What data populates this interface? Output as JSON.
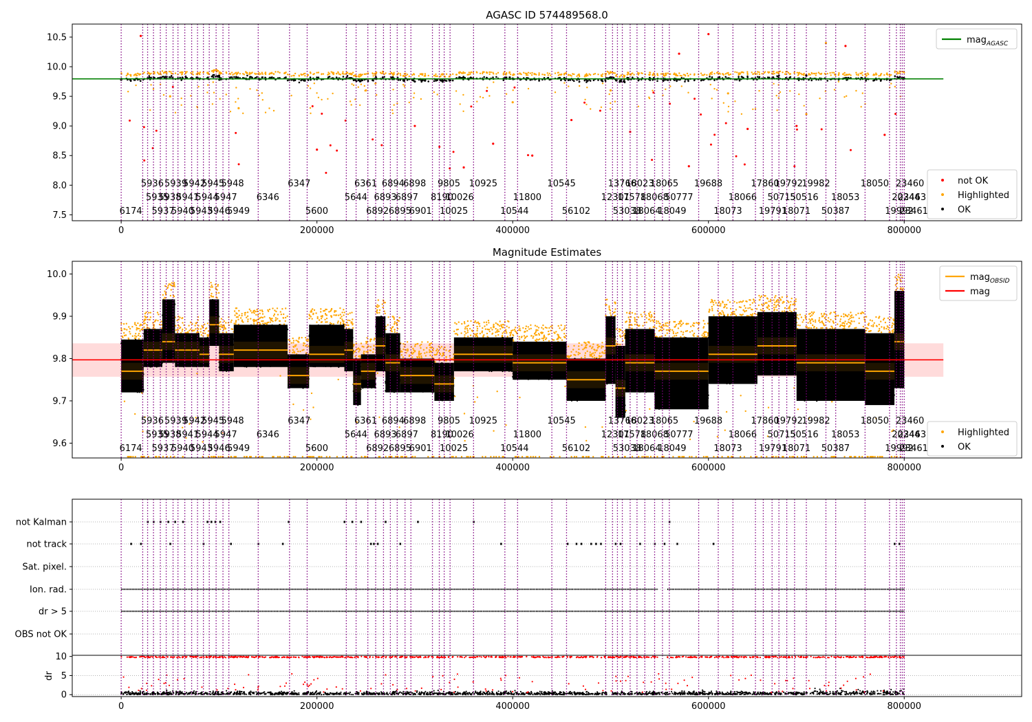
{
  "chart_data": [
    {
      "type": "scatter",
      "title": "AGASC ID 574489568.0",
      "xlabel": "",
      "ylabel": "",
      "xlim": [
        -50000,
        920000
      ],
      "ylim": [
        7.4,
        10.72
      ],
      "xticks": [
        0,
        200000,
        400000,
        600000,
        800000
      ],
      "xtick_labels": [
        "0",
        "200000",
        "400000",
        "600000",
        "800000"
      ],
      "yticks": [
        7.5,
        8.0,
        8.5,
        9.0,
        9.5,
        10.0,
        10.5
      ],
      "ytick_labels": [
        "7.5",
        "8.0",
        "8.5",
        "9.0",
        "9.5",
        "10.0",
        "10.5"
      ],
      "series": [
        {
          "name": "not OK",
          "color": "#ff0000",
          "points": [
            [
              20000,
              10.52
            ],
            [
              200000,
              8.6
            ],
            [
              300000,
              9.0
            ],
            [
              350000,
              8.3
            ],
            [
              380000,
              8.7
            ],
            [
              420000,
              8.5
            ],
            [
              460000,
              9.1
            ],
            [
              520000,
              8.9
            ],
            [
              570000,
              10.22
            ],
            [
              580000,
              8.32
            ],
            [
              600000,
              10.55
            ],
            [
              640000,
              8.95
            ],
            [
              690000,
              9.0
            ],
            [
              740000,
              10.35
            ],
            [
              780000,
              8.85
            ]
          ]
        },
        {
          "name": "Highlighted",
          "color": "#ffa500",
          "points": [
            [
              50000,
              9.5
            ],
            [
              120000,
              9.3
            ],
            [
              250000,
              9.6
            ],
            [
              400000,
              9.4
            ],
            [
              500000,
              9.6
            ],
            [
              620000,
              9.55
            ],
            [
              700000,
              9.2
            ],
            [
              720000,
              10.4
            ]
          ]
        },
        {
          "name": "OK",
          "color": "#000000",
          "points": [
            [
              0,
              9.78
            ],
            [
              100000,
              9.85
            ],
            [
              200000,
              9.79
            ],
            [
              300000,
              9.75
            ],
            [
              400000,
              9.8
            ],
            [
              500000,
              9.82
            ],
            [
              600000,
              9.79
            ],
            [
              700000,
              9.85
            ],
            [
              800000,
              9.8
            ]
          ]
        }
      ],
      "line": {
        "name": "mag",
        "sub": "AGASC",
        "color": "#008000",
        "value": 9.795
      },
      "legends": [
        {
          "entries": [
            {
              "marker": "line",
              "color": "#008000",
              "label": "mag",
              "sub": "AGASC"
            }
          ]
        },
        {
          "entries": [
            {
              "marker": "dot",
              "color": "#ff0000",
              "label": "not OK"
            },
            {
              "marker": "dot",
              "color": "#ffa500",
              "label": "Highlighted"
            },
            {
              "marker": "dot",
              "color": "#000000",
              "label": "OK"
            }
          ]
        }
      ]
    },
    {
      "type": "scatter",
      "title": "Magnitude Estimates",
      "xlabel": "",
      "ylabel": "",
      "xlim": [
        -50000,
        920000
      ],
      "ylim": [
        9.565,
        10.03
      ],
      "xticks": [
        0,
        200000,
        400000,
        600000,
        800000
      ],
      "xtick_labels": [
        "0",
        "200000",
        "400000",
        "600000",
        "800000"
      ],
      "yticks": [
        9.6,
        9.7,
        9.8,
        9.9,
        10.0
      ],
      "ytick_labels": [
        "9.6",
        "9.7",
        "9.8",
        "9.9",
        "10.0"
      ],
      "band": {
        "color": "#ffcccc",
        "low": 9.757,
        "high": 9.836
      },
      "line": {
        "name": "mag",
        "color": "#ff0000",
        "value": 9.797
      },
      "segments": [
        {
          "x": [
            0,
            23000
          ],
          "lo": 9.72,
          "hi": 9.845,
          "mean": 9.77
        },
        {
          "x": [
            23000,
            42000
          ],
          "lo": 9.78,
          "hi": 9.87,
          "mean": 9.82
        },
        {
          "x": [
            42000,
            55000
          ],
          "lo": 9.79,
          "hi": 9.94,
          "mean": 9.84
        },
        {
          "x": [
            55000,
            80000
          ],
          "lo": 9.78,
          "hi": 9.86,
          "mean": 9.82
        },
        {
          "x": [
            80000,
            90000
          ],
          "lo": 9.78,
          "hi": 9.85,
          "mean": 9.81
        },
        {
          "x": [
            90000,
            100000
          ],
          "lo": 9.83,
          "hi": 9.94,
          "mean": 9.88
        },
        {
          "x": [
            100000,
            115000
          ],
          "lo": 9.77,
          "hi": 9.86,
          "mean": 9.81
        },
        {
          "x": [
            115000,
            170000
          ],
          "lo": 9.78,
          "hi": 9.88,
          "mean": 9.82
        },
        {
          "x": [
            170000,
            192000
          ],
          "lo": 9.73,
          "hi": 9.81,
          "mean": 9.76
        },
        {
          "x": [
            192000,
            228000
          ],
          "lo": 9.78,
          "hi": 9.88,
          "mean": 9.81
        },
        {
          "x": [
            228000,
            237000
          ],
          "lo": 9.77,
          "hi": 9.87,
          "mean": 9.82
        },
        {
          "x": [
            237000,
            245000
          ],
          "lo": 9.69,
          "hi": 9.8,
          "mean": 9.74
        },
        {
          "x": [
            245000,
            260000
          ],
          "lo": 9.73,
          "hi": 9.81,
          "mean": 9.77
        },
        {
          "x": [
            260000,
            270000
          ],
          "lo": 9.77,
          "hi": 9.9,
          "mean": 9.83
        },
        {
          "x": [
            270000,
            285000
          ],
          "lo": 9.72,
          "hi": 9.86,
          "mean": 9.79
        },
        {
          "x": [
            285000,
            320000
          ],
          "lo": 9.72,
          "hi": 9.8,
          "mean": 9.76
        },
        {
          "x": [
            320000,
            340000
          ],
          "lo": 9.7,
          "hi": 9.79,
          "mean": 9.74
        },
        {
          "x": [
            340000,
            400000
          ],
          "lo": 9.77,
          "hi": 9.85,
          "mean": 9.81
        },
        {
          "x": [
            400000,
            455000
          ],
          "lo": 9.75,
          "hi": 9.84,
          "mean": 9.79
        },
        {
          "x": [
            455000,
            495000
          ],
          "lo": 9.7,
          "hi": 9.8,
          "mean": 9.75
        },
        {
          "x": [
            495000,
            505000
          ],
          "lo": 9.74,
          "hi": 9.9,
          "mean": 9.83
        },
        {
          "x": [
            505000,
            515000
          ],
          "lo": 9.66,
          "hi": 9.83,
          "mean": 9.73
        },
        {
          "x": [
            515000,
            545000
          ],
          "lo": 9.72,
          "hi": 9.87,
          "mean": 9.79
        },
        {
          "x": [
            545000,
            600000
          ],
          "lo": 9.68,
          "hi": 9.85,
          "mean": 9.77
        },
        {
          "x": [
            600000,
            650000
          ],
          "lo": 9.74,
          "hi": 9.9,
          "mean": 9.81
        },
        {
          "x": [
            650000,
            690000
          ],
          "lo": 9.76,
          "hi": 9.91,
          "mean": 9.83
        },
        {
          "x": [
            690000,
            760000
          ],
          "lo": 9.7,
          "hi": 9.87,
          "mean": 9.79
        },
        {
          "x": [
            760000,
            790000
          ],
          "lo": 9.69,
          "hi": 9.86,
          "mean": 9.77
        },
        {
          "x": [
            790000,
            800000
          ],
          "lo": 9.73,
          "hi": 9.96,
          "mean": 9.84
        }
      ],
      "legends": [
        {
          "entries": [
            {
              "marker": "line",
              "color": "#ffa500",
              "label": "mag",
              "sub": "OBSID"
            },
            {
              "marker": "line",
              "color": "#ff0000",
              "label": "mag"
            }
          ]
        },
        {
          "entries": [
            {
              "marker": "dot",
              "color": "#ffa500",
              "label": "Highlighted"
            },
            {
              "marker": "dot",
              "color": "#000000",
              "label": "OK"
            }
          ]
        }
      ]
    },
    {
      "type": "scatter",
      "title": "",
      "xlim": [
        -50000,
        920000
      ],
      "categories": [
        "OBS not OK",
        "dr > 5",
        "Ion. rad.",
        "Sat. pixel.",
        "not track",
        "not Kalman"
      ],
      "rows": [
        {
          "label": "not Kalman",
          "points": [
            27000,
            33000,
            40000,
            48000,
            55000,
            63000,
            88000,
            92000,
            96000,
            101000,
            171000,
            228000,
            236000,
            245000,
            270000,
            303000,
            360000,
            560000
          ]
        },
        {
          "label": "not track",
          "points": [
            10000,
            20000,
            50000,
            84000,
            112000,
            140000,
            165000,
            255000,
            258000,
            262000,
            285000,
            388000,
            456000,
            465000,
            470000,
            480000,
            485000,
            490000,
            505000,
            510000,
            530000,
            545000,
            555000,
            568000,
            605000,
            790000,
            795000
          ]
        },
        {
          "label": "Sat. pixel.",
          "points": []
        },
        {
          "label": "Ion. rad.",
          "ranges": [
            [
              0,
              548000
            ],
            [
              558000,
              800000
            ]
          ]
        },
        {
          "label": "dr > 5",
          "ranges": [
            [
              0,
              800000
            ]
          ]
        },
        {
          "label": "OBS not OK",
          "points": []
        }
      ]
    },
    {
      "type": "scatter",
      "title": "",
      "xlabel": "",
      "ylabel": "dr",
      "xlim": [
        -50000,
        920000
      ],
      "ylim": [
        -0.5,
        10.3
      ],
      "yticks": [
        0,
        5,
        10
      ],
      "ytick_labels": [
        "0",
        "5",
        "10"
      ],
      "xticks": [
        0,
        200000,
        400000,
        600000,
        800000
      ],
      "xtick_labels": [
        "0",
        "200000",
        "400000",
        "600000",
        "800000"
      ]
    }
  ],
  "obsids": [
    {
      "x": 0,
      "label": "6174",
      "row": 2
    },
    {
      "x": 22000,
      "label": "5936",
      "row": 0
    },
    {
      "x": 27000,
      "label": "5935",
      "row": 1
    },
    {
      "x": 33000,
      "label": "5937",
      "row": 2
    },
    {
      "x": 40000,
      "label": "5938",
      "row": 1
    },
    {
      "x": 46000,
      "label": "5939",
      "row": 0
    },
    {
      "x": 53000,
      "label": "5940",
      "row": 2
    },
    {
      "x": 58000,
      "label": "5941",
      "row": 1
    },
    {
      "x": 65000,
      "label": "5942",
      "row": 0
    },
    {
      "x": 72000,
      "label": "5943",
      "row": 2
    },
    {
      "x": 78000,
      "label": "5944",
      "row": 1
    },
    {
      "x": 84000,
      "label": "5945",
      "row": 0
    },
    {
      "x": 90000,
      "label": "5946",
      "row": 2
    },
    {
      "x": 97000,
      "label": "5947",
      "row": 1
    },
    {
      "x": 104000,
      "label": "5948",
      "row": 0
    },
    {
      "x": 110000,
      "label": "5949",
      "row": 2
    },
    {
      "x": 140000,
      "label": "6346",
      "row": 1
    },
    {
      "x": 172000,
      "label": "6347",
      "row": 0
    },
    {
      "x": 190000,
      "label": "5600",
      "row": 2
    },
    {
      "x": 230000,
      "label": "5644",
      "row": 1
    },
    {
      "x": 240000,
      "label": "6361",
      "row": 0
    },
    {
      "x": 252000,
      "label": "6892",
      "row": 2
    },
    {
      "x": 260000,
      "label": "6893",
      "row": 1
    },
    {
      "x": 268000,
      "label": "6894",
      "row": 0
    },
    {
      "x": 275000,
      "label": "6895",
      "row": 2
    },
    {
      "x": 282000,
      "label": "6897",
      "row": 1
    },
    {
      "x": 290000,
      "label": "6898",
      "row": 0
    },
    {
      "x": 296000,
      "label": "6901",
      "row": 2
    },
    {
      "x": 318000,
      "label": "8190",
      "row": 1
    },
    {
      "x": 325000,
      "label": "9805",
      "row": 0
    },
    {
      "x": 330000,
      "label": "10025",
      "row": 2
    },
    {
      "x": 336000,
      "label": "10026",
      "row": 1
    },
    {
      "x": 360000,
      "label": "10925",
      "row": 0
    },
    {
      "x": 392000,
      "label": "10544",
      "row": 2
    },
    {
      "x": 405000,
      "label": "11800",
      "row": 1
    },
    {
      "x": 440000,
      "label": "10545",
      "row": 0
    },
    {
      "x": 455000,
      "label": "56102",
      "row": 2
    },
    {
      "x": 495000,
      "label": "12301",
      "row": 1
    },
    {
      "x": 502000,
      "label": "13766",
      "row": 0
    },
    {
      "x": 507000,
      "label": "53038",
      "row": 2
    },
    {
      "x": 512000,
      "label": "17578",
      "row": 1
    },
    {
      "x": 520000,
      "label": "18023",
      "row": 0
    },
    {
      "x": 527000,
      "label": "18064",
      "row": 2
    },
    {
      "x": 535000,
      "label": "18068",
      "row": 1
    },
    {
      "x": 545000,
      "label": "18065",
      "row": 0
    },
    {
      "x": 553000,
      "label": "18049",
      "row": 2
    },
    {
      "x": 560000,
      "label": "50777",
      "row": 1
    },
    {
      "x": 590000,
      "label": "19688",
      "row": 0
    },
    {
      "x": 610000,
      "label": "18073",
      "row": 2
    },
    {
      "x": 625000,
      "label": "18066",
      "row": 1
    },
    {
      "x": 648000,
      "label": "17860",
      "row": 0
    },
    {
      "x": 656000,
      "label": "19791",
      "row": 2
    },
    {
      "x": 665000,
      "label": "50715",
      "row": 1
    },
    {
      "x": 672000,
      "label": "19792",
      "row": 0
    },
    {
      "x": 680000,
      "label": "18071",
      "row": 2
    },
    {
      "x": 688000,
      "label": "50516",
      "row": 1
    },
    {
      "x": 700000,
      "label": "19982",
      "row": 0
    },
    {
      "x": 720000,
      "label": "50387",
      "row": 2
    },
    {
      "x": 730000,
      "label": "18053",
      "row": 1
    },
    {
      "x": 760000,
      "label": "18050",
      "row": 0
    },
    {
      "x": 785000,
      "label": "19992",
      "row": 2
    },
    {
      "x": 792000,
      "label": "20244",
      "row": 1
    },
    {
      "x": 796000,
      "label": "23460",
      "row": 0
    },
    {
      "x": 798000,
      "label": "23463",
      "row": 1
    },
    {
      "x": 800000,
      "label": "23461",
      "row": 2
    }
  ]
}
